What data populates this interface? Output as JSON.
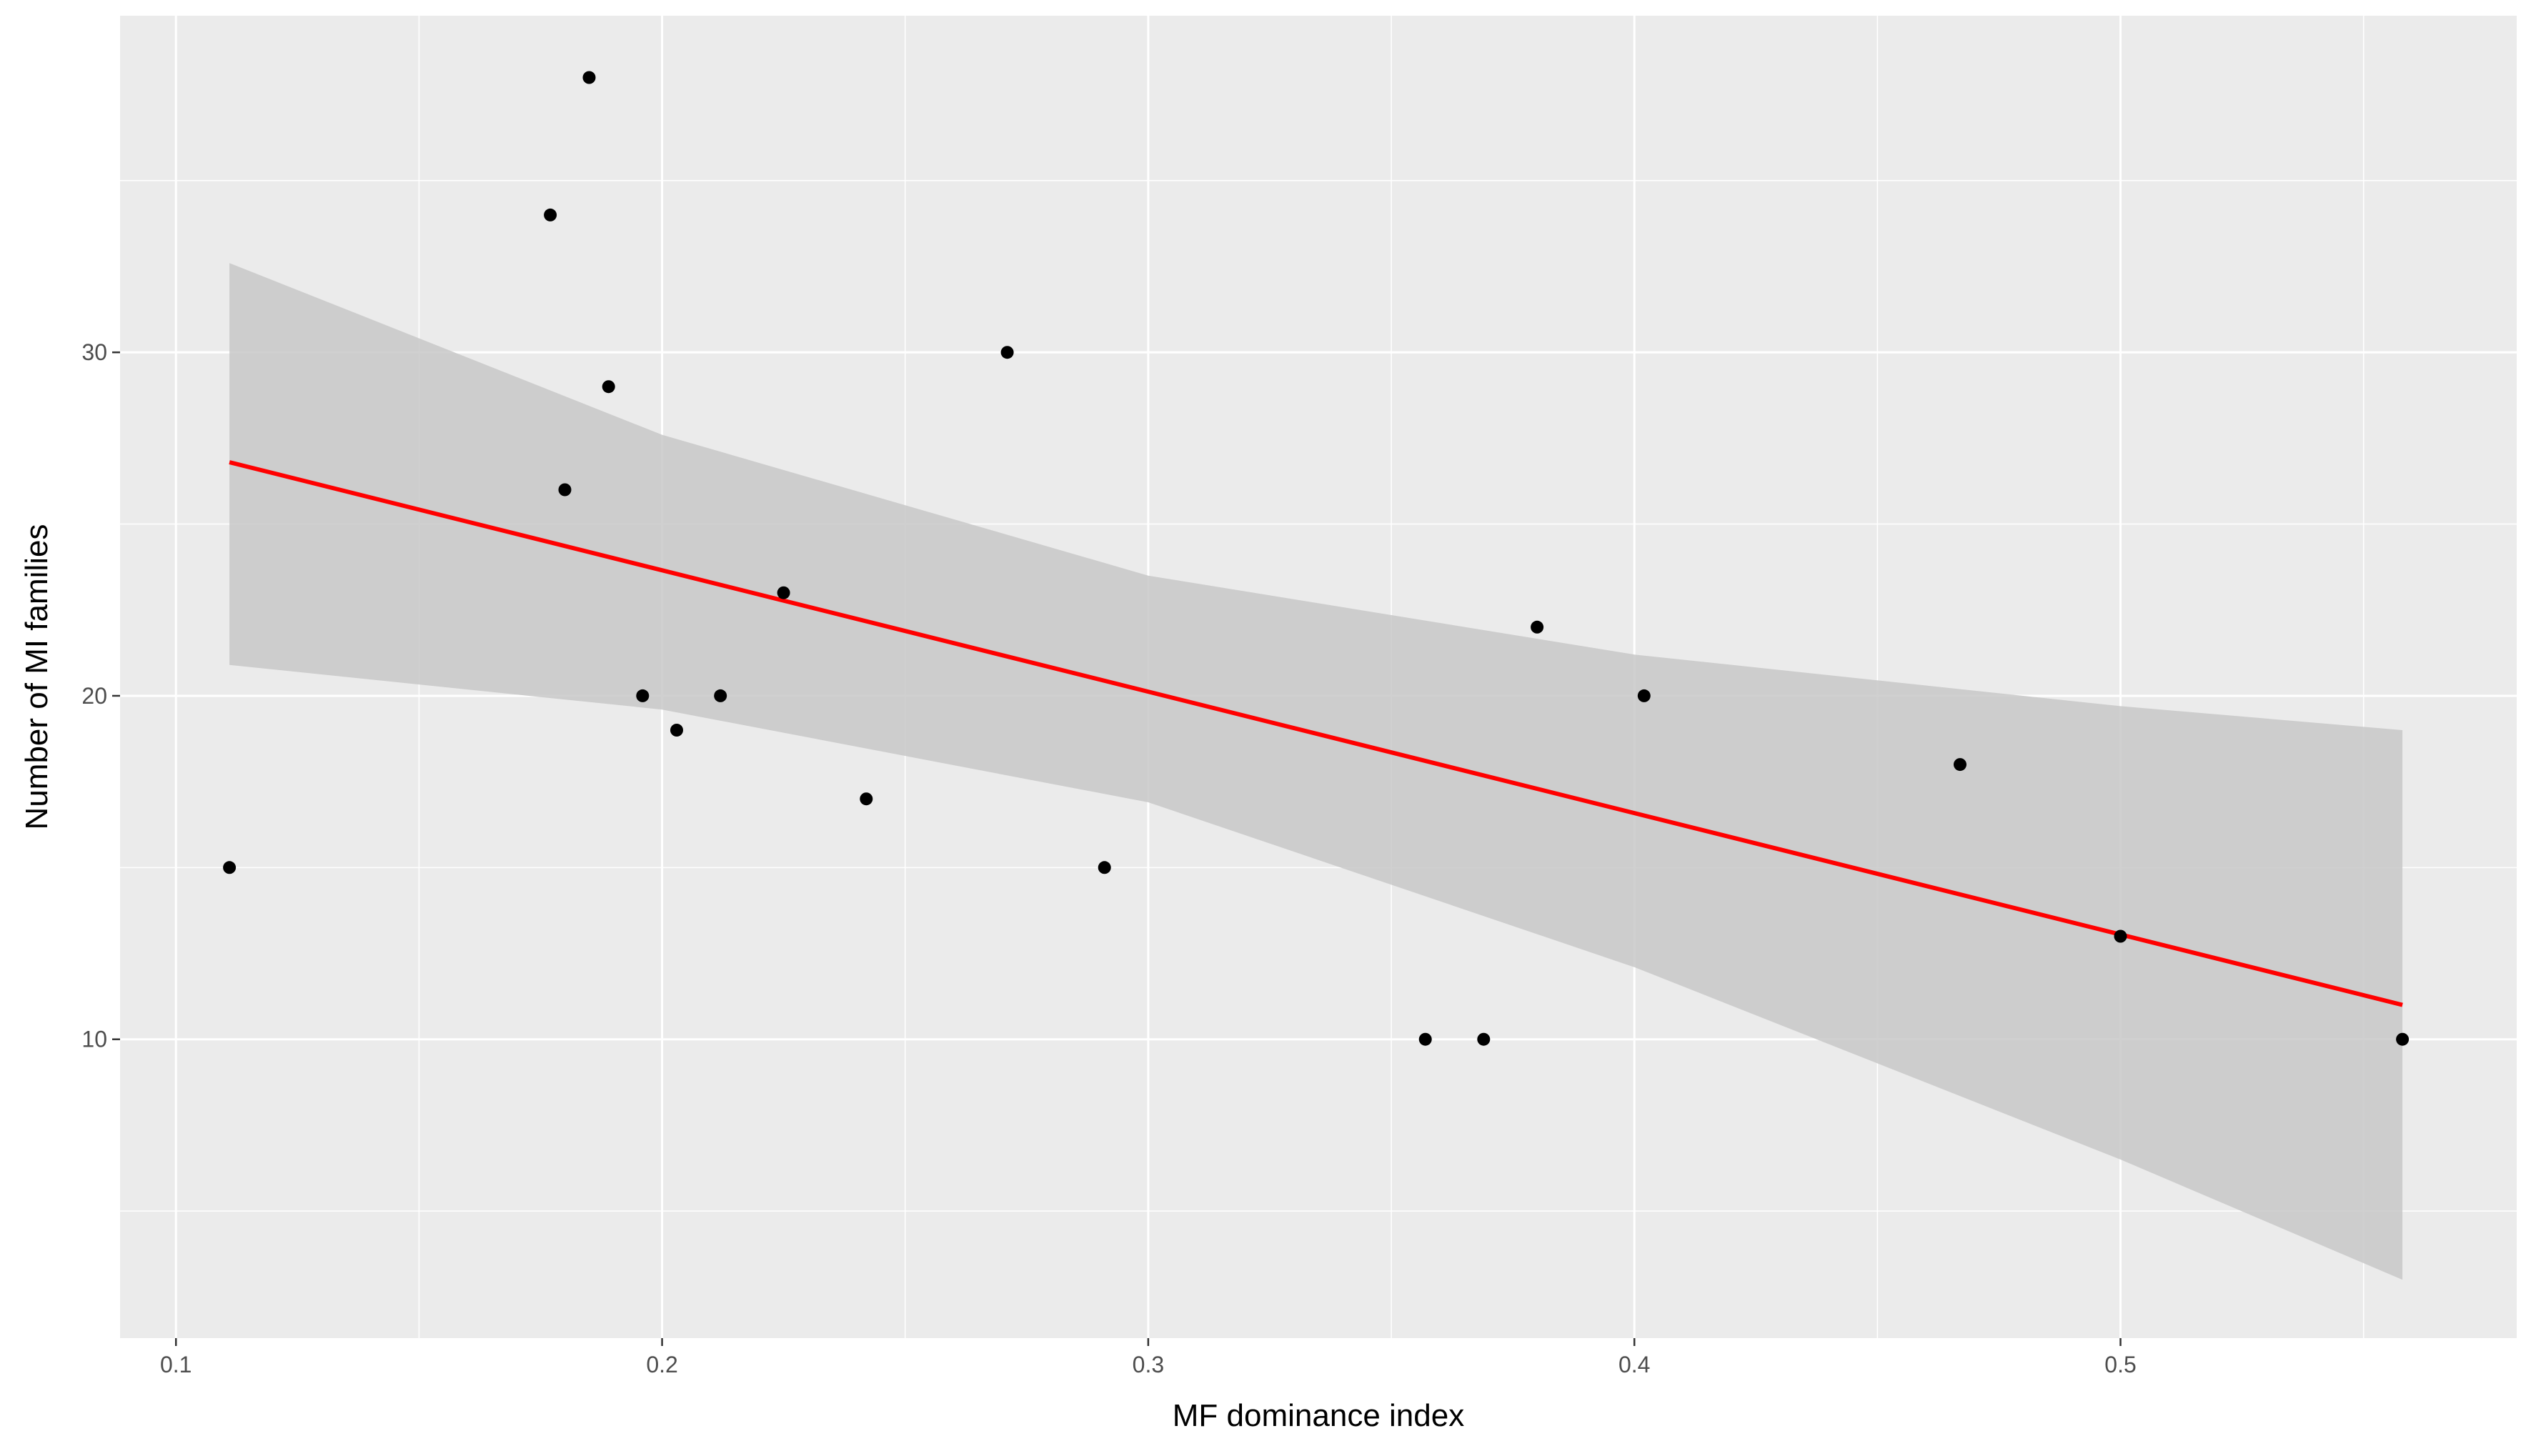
{
  "chart_data": {
    "type": "scatter",
    "title": "",
    "xlabel": "MF dominance index",
    "ylabel": "Number of MI families",
    "xlim": [
      0.0885,
      0.5815
    ],
    "ylim": [
      1.3,
      39.8
    ],
    "x_ticks": [
      0.1,
      0.2,
      0.3,
      0.4,
      0.5
    ],
    "x_tick_labels": [
      "0.1",
      "0.2",
      "0.3",
      "0.4",
      "0.5"
    ],
    "x_minor_ticks": [
      0.15,
      0.25,
      0.35,
      0.45,
      0.55
    ],
    "y_ticks": [
      10,
      20,
      30
    ],
    "y_tick_labels": [
      "10",
      "20",
      "30"
    ],
    "y_minor_ticks": [
      5,
      15,
      25,
      35
    ],
    "grid": true,
    "legend": "none",
    "colors": {
      "panel_background": "#ebebeb",
      "grid_lines": "#ffffff",
      "points": "#000000",
      "fit_line": "#ff0000",
      "confidence_band": "#c8c8c8"
    },
    "series": [
      {
        "type": "scatter",
        "points": [
          {
            "x": 0.111,
            "y": 15
          },
          {
            "x": 0.177,
            "y": 34
          },
          {
            "x": 0.18,
            "y": 26
          },
          {
            "x": 0.185,
            "y": 38
          },
          {
            "x": 0.189,
            "y": 29
          },
          {
            "x": 0.196,
            "y": 20
          },
          {
            "x": 0.203,
            "y": 19
          },
          {
            "x": 0.212,
            "y": 20
          },
          {
            "x": 0.225,
            "y": 23
          },
          {
            "x": 0.242,
            "y": 17
          },
          {
            "x": 0.271,
            "y": 30
          },
          {
            "x": 0.291,
            "y": 15
          },
          {
            "x": 0.357,
            "y": 10
          },
          {
            "x": 0.369,
            "y": 10
          },
          {
            "x": 0.38,
            "y": 22
          },
          {
            "x": 0.402,
            "y": 20
          },
          {
            "x": 0.467,
            "y": 18
          },
          {
            "x": 0.5,
            "y": 13
          },
          {
            "x": 0.558,
            "y": 10
          }
        ]
      },
      {
        "type": "line",
        "method": "linear fit",
        "points": [
          {
            "x": 0.111,
            "y": 26.8
          },
          {
            "x": 0.558,
            "y": 11.0
          }
        ]
      },
      {
        "type": "band",
        "method": "95% confidence interval",
        "x": [
          0.111,
          0.2,
          0.3,
          0.4,
          0.5,
          0.558
        ],
        "lower": [
          20.9,
          19.6,
          16.9,
          12.1,
          6.5,
          3.0
        ],
        "upper": [
          32.6,
          27.6,
          23.5,
          21.2,
          19.7,
          19.0
        ]
      }
    ]
  }
}
